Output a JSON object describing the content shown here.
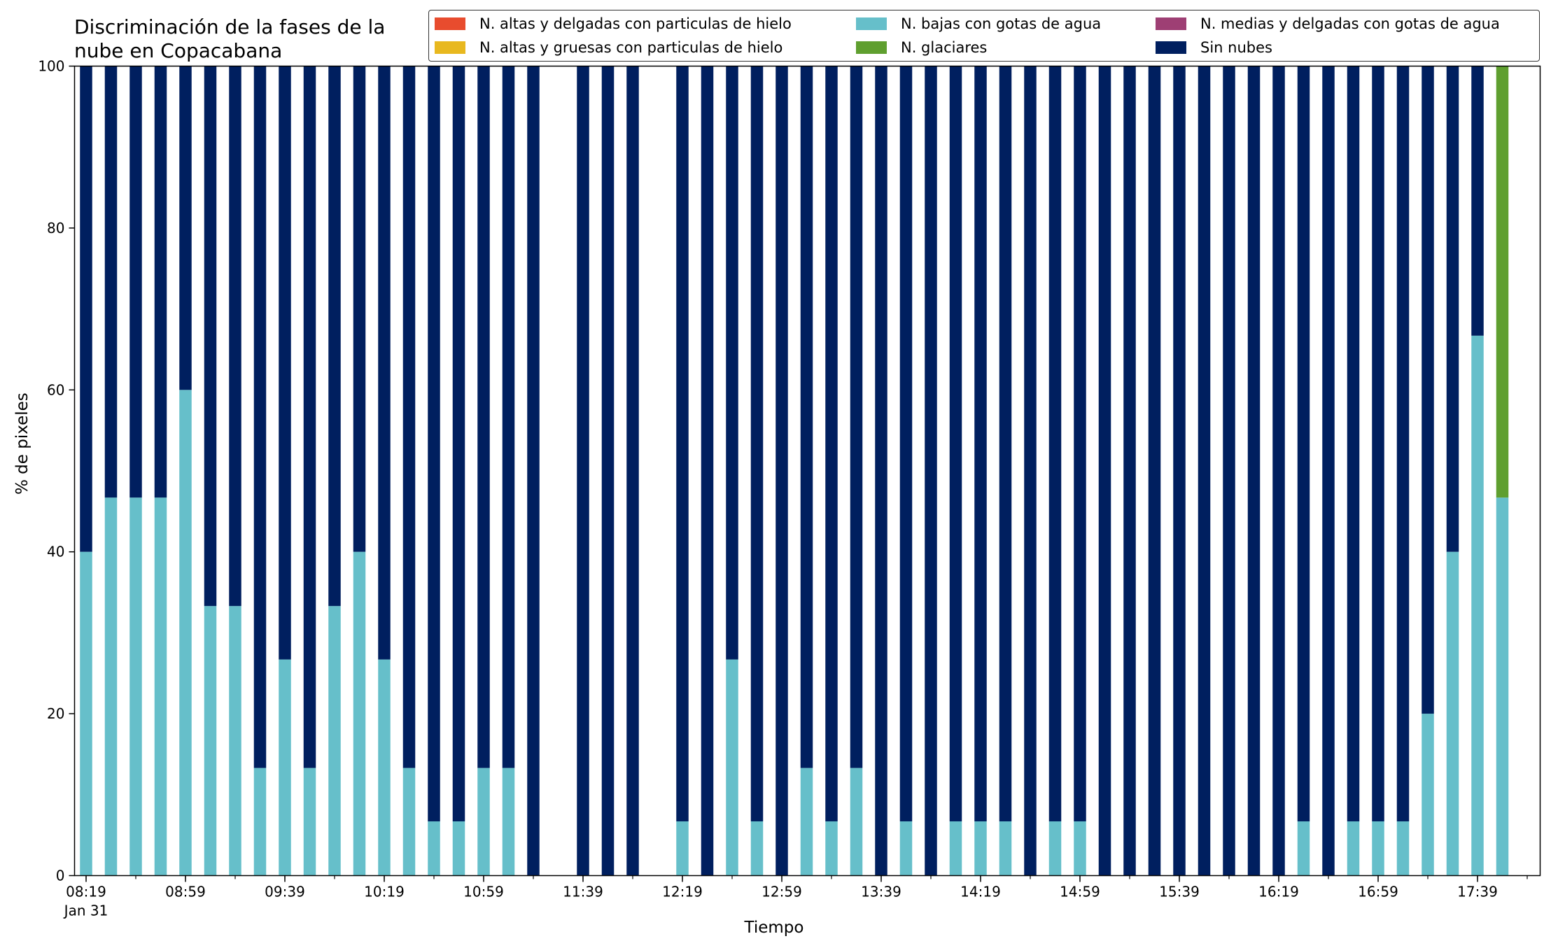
{
  "chart_data": {
    "type": "bar",
    "stacked": true,
    "title_lines": [
      "Discriminación de la fases de la",
      "nube en Copacabana"
    ],
    "xlabel": "Tiempo",
    "ylabel": "% de pixeles",
    "ylim": [
      0,
      100
    ],
    "yticks": [
      "0",
      "20",
      "40",
      "60",
      "80",
      "100"
    ],
    "legend_placement": "top-right",
    "x_start_time": "08:19",
    "x_interval_minutes": 10,
    "xtick_labels": [
      "08:19",
      "08:59",
      "09:39",
      "10:19",
      "10:59",
      "11:39",
      "12:19",
      "12:59",
      "13:39",
      "14:19",
      "14:59",
      "15:39",
      "16:19",
      "16:59",
      "17:39"
    ],
    "xtick_sublabel": "Jan 31",
    "series": [
      {
        "name": "N. altas y delgadas con particulas de hielo",
        "color": "#e84c2e",
        "values": [
          0,
          0,
          0,
          0,
          0,
          0,
          0,
          0,
          0,
          0,
          0,
          0,
          0,
          0,
          0,
          0,
          0,
          0,
          0,
          0,
          0,
          0,
          0,
          0,
          0,
          0,
          0,
          0,
          0,
          0,
          0,
          0,
          0,
          0,
          0,
          0,
          0,
          0,
          0,
          0,
          0,
          0,
          0,
          0,
          0,
          0,
          0,
          0,
          0,
          0,
          0,
          0,
          0,
          0,
          0,
          0,
          0,
          0
        ]
      },
      {
        "name": "N. altas y gruesas con particulas de hielo",
        "color": "#e8b81f",
        "values": [
          0,
          0,
          0,
          0,
          0,
          0,
          0,
          0,
          0,
          0,
          0,
          0,
          0,
          0,
          0,
          0,
          0,
          0,
          0,
          0,
          0,
          0,
          0,
          0,
          0,
          0,
          0,
          0,
          0,
          0,
          0,
          0,
          0,
          0,
          0,
          0,
          0,
          0,
          0,
          0,
          0,
          0,
          0,
          0,
          0,
          0,
          0,
          0,
          0,
          0,
          0,
          0,
          0,
          0,
          0,
          0,
          0,
          0
        ]
      },
      {
        "name": "N. bajas con gotas de agua",
        "color": "#66bfca",
        "values": [
          40,
          46.7,
          46.7,
          46.7,
          60,
          33.3,
          33.3,
          13.3,
          26.7,
          13.3,
          33.3,
          40,
          26.7,
          13.3,
          6.7,
          6.7,
          13.3,
          13.3,
          0,
          null,
          0,
          0,
          0,
          null,
          6.7,
          0,
          26.7,
          6.7,
          0,
          13.3,
          6.7,
          13.3,
          0,
          6.7,
          0,
          6.7,
          6.7,
          6.7,
          0,
          6.7,
          6.7,
          0,
          0,
          0,
          0,
          0,
          0,
          0,
          0,
          6.7,
          0,
          6.7,
          6.7,
          6.7,
          20,
          40,
          66.7,
          46.7
        ]
      },
      {
        "name": "N. glaciares",
        "color": "#5f9f2f",
        "values": [
          0,
          0,
          0,
          0,
          0,
          0,
          0,
          0,
          0,
          0,
          0,
          0,
          0,
          0,
          0,
          0,
          0,
          0,
          0,
          null,
          0,
          0,
          0,
          null,
          0,
          0,
          0,
          0,
          0,
          0,
          0,
          0,
          0,
          0,
          0,
          0,
          0,
          0,
          0,
          0,
          0,
          0,
          0,
          0,
          0,
          0,
          0,
          0,
          0,
          0,
          0,
          0,
          0,
          0,
          0,
          0,
          0,
          53.3
        ]
      },
      {
        "name": "N. medias y delgadas con gotas de agua",
        "color": "#9e3f74",
        "values": [
          0,
          0,
          0,
          0,
          0,
          0,
          0,
          0,
          0,
          0,
          0,
          0,
          0,
          0,
          0,
          0,
          0,
          0,
          0,
          0,
          0,
          0,
          0,
          0,
          0,
          0,
          0,
          0,
          0,
          0,
          0,
          0,
          0,
          0,
          0,
          0,
          0,
          0,
          0,
          0,
          0,
          0,
          0,
          0,
          0,
          0,
          0,
          0,
          0,
          0,
          0,
          0,
          0,
          0,
          0,
          0,
          0,
          0
        ]
      },
      {
        "name": "Sin nubes",
        "color": "#001f5f",
        "values": [
          60,
          53.3,
          53.3,
          53.3,
          40,
          66.7,
          66.7,
          86.7,
          73.3,
          86.7,
          66.7,
          60,
          73.3,
          86.7,
          93.3,
          93.3,
          86.7,
          86.7,
          100,
          null,
          100,
          100,
          100,
          null,
          93.3,
          100,
          73.3,
          93.3,
          100,
          86.7,
          93.3,
          86.7,
          100,
          93.3,
          100,
          93.3,
          93.3,
          93.3,
          100,
          93.3,
          93.3,
          100,
          100,
          100,
          100,
          100,
          100,
          100,
          100,
          93.3,
          100,
          93.3,
          93.3,
          93.3,
          80,
          60,
          33.3,
          0
        ]
      }
    ]
  }
}
